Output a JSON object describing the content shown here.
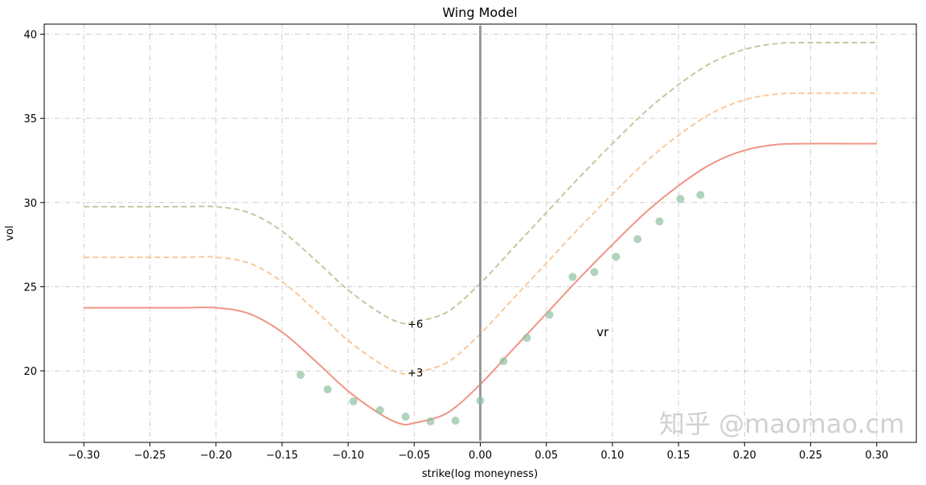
{
  "chart_data": {
    "type": "line",
    "title": "Wing Model",
    "xlabel": "strike(log moneyness)",
    "ylabel": "vol",
    "xlim": [
      -0.33,
      0.33
    ],
    "ylim": [
      15.75,
      40.6
    ],
    "xticks": [
      -0.3,
      -0.25,
      -0.2,
      -0.15,
      -0.1,
      -0.05,
      0.0,
      0.05,
      0.1,
      0.15,
      0.2,
      0.25,
      0.3
    ],
    "xtick_labels": [
      "−0.30",
      "−0.25",
      "−0.20",
      "−0.15",
      "−0.10",
      "−0.05",
      "0.00",
      "0.05",
      "0.10",
      "0.15",
      "0.20",
      "0.25",
      "0.30"
    ],
    "yticks": [
      20,
      25,
      30,
      35,
      40
    ],
    "ytick_labels": [
      "20",
      "25",
      "30",
      "35",
      "40"
    ],
    "grid": true,
    "x": [
      -0.3,
      -0.275,
      -0.25,
      -0.225,
      -0.2,
      -0.175,
      -0.15,
      -0.125,
      -0.1,
      -0.075,
      -0.06,
      -0.05,
      -0.025,
      0.0,
      0.025,
      0.05,
      0.075,
      0.1,
      0.125,
      0.15,
      0.175,
      0.2,
      0.225,
      0.25,
      0.275,
      0.3
    ],
    "series": [
      {
        "color": "#ef9586",
        "style": "solid",
        "values": [
          23.75,
          23.75,
          23.75,
          23.75,
          23.75,
          23.4,
          22.3,
          20.6,
          18.8,
          17.4,
          16.85,
          16.9,
          17.5,
          19.2,
          21.3,
          23.4,
          25.5,
          27.5,
          29.4,
          31.0,
          32.3,
          33.1,
          33.45,
          33.5,
          33.5,
          33.5
        ]
      },
      {
        "color": "#f8c99a",
        "style": "dashed",
        "values": [
          26.75,
          26.75,
          26.75,
          26.75,
          26.75,
          26.4,
          25.3,
          23.6,
          21.8,
          20.4,
          19.85,
          19.9,
          20.5,
          22.2,
          24.3,
          26.4,
          28.5,
          30.5,
          32.4,
          34.0,
          35.3,
          36.1,
          36.45,
          36.5,
          36.5,
          36.5
        ]
      },
      {
        "color": "#bccca0",
        "style": "dashed",
        "values": [
          29.75,
          29.75,
          29.75,
          29.75,
          29.75,
          29.4,
          28.3,
          26.6,
          24.8,
          23.4,
          22.85,
          22.9,
          23.5,
          25.2,
          27.3,
          29.4,
          31.5,
          33.5,
          35.4,
          37.0,
          38.3,
          39.1,
          39.45,
          39.5,
          39.5,
          39.5
        ]
      }
    ],
    "scatter": {
      "color": "#8fc0a0",
      "x": [
        -0.136,
        -0.1155,
        -0.096,
        -0.076,
        -0.0565,
        -0.0377,
        -0.0188,
        0.0,
        0.0176,
        0.0353,
        0.0523,
        0.0699,
        0.0863,
        0.1027,
        0.119,
        0.1356,
        0.1514,
        0.1666
      ],
      "y": [
        19.76,
        18.9,
        18.19,
        17.66,
        17.28,
        17.0,
        17.04,
        18.23,
        20.57,
        21.96,
        23.34,
        25.58,
        25.87,
        26.78,
        27.83,
        28.88,
        30.21,
        30.45
      ]
    },
    "vline": {
      "x": 0.0,
      "color": "#999999"
    },
    "annotations": [
      {
        "text": "+6",
        "x": -0.055,
        "y": 22.8
      },
      {
        "text": "+3",
        "x": -0.055,
        "y": 19.9
      },
      {
        "text": "vr",
        "x": 0.088,
        "y": 22.3
      }
    ],
    "watermark": "知乎 @maomao.cm"
  }
}
